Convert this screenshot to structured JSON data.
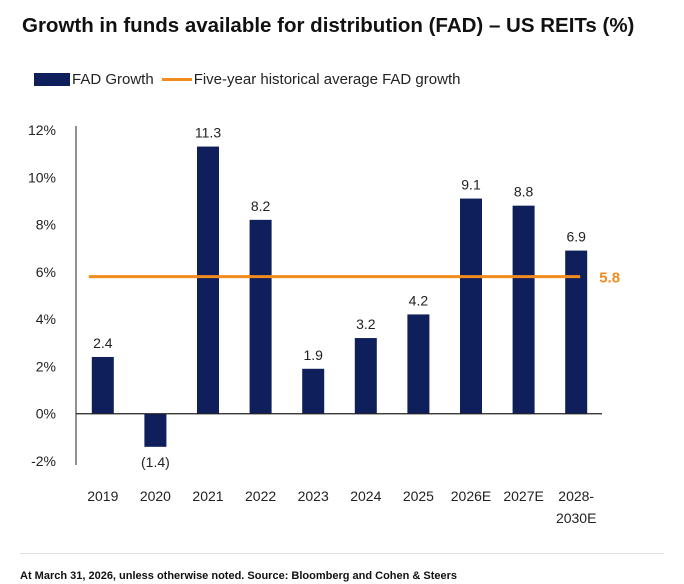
{
  "title": "Growth in funds available for distribution (FAD) – US REITs (%)",
  "footnote": "At March 31, 2026, unless otherwise noted. Source: Bloomberg and Cohen & Steers",
  "colors": {
    "bar": "#0e1f5b",
    "average_line": "#f08c1e",
    "axis": "#222222"
  },
  "chart_data": {
    "type": "bar",
    "title": "Growth in funds available for distribution (FAD) – US REITs (%)",
    "xlabel": "",
    "ylabel": "",
    "ylim": [
      -2,
      12
    ],
    "yticks": [
      12,
      10,
      8,
      6,
      4,
      2,
      0,
      -2
    ],
    "ytick_labels": [
      "12%",
      "10%",
      "8%",
      "6%",
      "4%",
      "2%",
      "0%",
      "-2%"
    ],
    "grid": false,
    "legend_position": "top-left",
    "categories": [
      [
        "2019"
      ],
      [
        "2020"
      ],
      [
        "2021"
      ],
      [
        "2022"
      ],
      [
        "2023"
      ],
      [
        "2024"
      ],
      [
        "2025"
      ],
      [
        "2026E"
      ],
      [
        "2027E"
      ],
      [
        "2028-",
        "2030E"
      ]
    ],
    "series": [
      {
        "name": "FAD Growth",
        "type": "bar",
        "values": [
          2.4,
          -1.4,
          11.3,
          8.2,
          1.9,
          3.2,
          4.2,
          9.1,
          8.8,
          6.9
        ],
        "labels": [
          "2.4",
          "(1.4)",
          "11.3",
          "8.2",
          "1.9",
          "3.2",
          "4.2",
          "9.1",
          "8.8",
          "6.9"
        ]
      },
      {
        "name": "Five-year historical average FAD growth",
        "type": "line",
        "value": 5.8,
        "label": "5.8"
      }
    ]
  }
}
